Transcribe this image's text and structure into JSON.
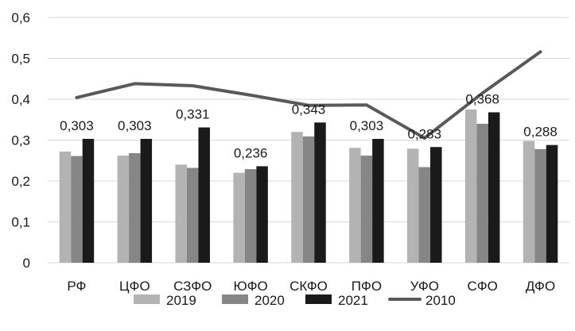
{
  "chart_data": {
    "type": "bar",
    "categories": [
      "РФ",
      "ЦФО",
      "СЗФО",
      "ЮФО",
      "СКФО",
      "ПФО",
      "УФО",
      "СФО",
      "ДФО"
    ],
    "series": [
      {
        "name": "2019",
        "type": "bar",
        "color": "#b3b3b3",
        "values": [
          0.272,
          0.262,
          0.24,
          0.22,
          0.32,
          0.281,
          0.279,
          0.375,
          0.298
        ]
      },
      {
        "name": "2020",
        "type": "bar",
        "color": "#868686",
        "values": [
          0.261,
          0.268,
          0.232,
          0.229,
          0.309,
          0.262,
          0.234,
          0.34,
          0.278
        ]
      },
      {
        "name": "2021",
        "type": "bar",
        "color": "#1a1a1a",
        "values": [
          0.303,
          0.303,
          0.331,
          0.236,
          0.343,
          0.303,
          0.283,
          0.368,
          0.288
        ]
      },
      {
        "name": "2010",
        "type": "line",
        "color": "#595959",
        "values": [
          0.404,
          0.438,
          0.433,
          0.41,
          0.385,
          0.386,
          0.305,
          0.415,
          0.516
        ]
      }
    ],
    "data_labels": [
      "0,303",
      "0,303",
      "0,331",
      "0,236",
      "0,343",
      "0,303",
      "0,283",
      "0,368",
      "0,288"
    ],
    "yticks": [
      "0",
      "0,1",
      "0,2",
      "0,3",
      "0,4",
      "0,5",
      "0,6"
    ],
    "ylim": [
      0,
      0.6
    ],
    "grid": true,
    "legend_position": "bottom",
    "title": "",
    "xlabel": "",
    "ylabel": ""
  }
}
